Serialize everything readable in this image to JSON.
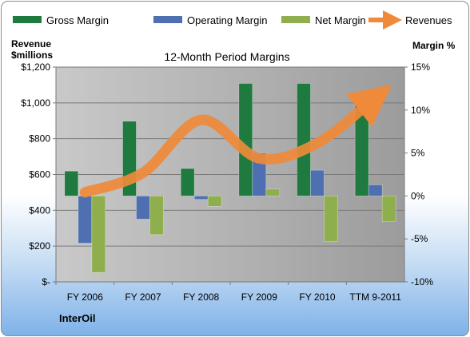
{
  "chart_data": {
    "type": "bar",
    "title": "12-Month Period Margins",
    "company": "InterOil",
    "categories": [
      "FY 2006",
      "FY 2007",
      "FY 2008",
      "FY 2009",
      "FY 2010",
      "TTM 9-2011"
    ],
    "left_axis": {
      "label_line1": "Revenue",
      "label_line2": "$millions",
      "range": [
        0,
        1200
      ],
      "ticks": [
        0,
        200,
        400,
        600,
        800,
        1000,
        1200
      ],
      "tick_labels": [
        "$-",
        "$200",
        "$400",
        "$600",
        "$800",
        "$1,000",
        "$1,200"
      ]
    },
    "right_axis": {
      "label": "Margin %",
      "range": [
        -10,
        15
      ],
      "ticks": [
        -10,
        -5,
        0,
        5,
        10,
        15
      ],
      "tick_labels": [
        "-10%",
        "-5%",
        "0%",
        "5%",
        "10%",
        "15%"
      ]
    },
    "series": [
      {
        "name": "Gross Margin",
        "axis": "right",
        "kind": "bar",
        "color": "#1e7a3e",
        "values": [
          2.9,
          8.7,
          3.2,
          13.1,
          13.1,
          11.2
        ]
      },
      {
        "name": "Operating Margin",
        "axis": "right",
        "kind": "bar",
        "color": "#4e6fb0",
        "values": [
          -5.5,
          -2.7,
          -0.4,
          5.0,
          3.0,
          1.3
        ]
      },
      {
        "name": "Net Margin",
        "axis": "right",
        "kind": "bar",
        "color": "#8fae4e",
        "values": [
          -8.9,
          -4.5,
          -1.2,
          0.8,
          -5.3,
          -3.0
        ]
      },
      {
        "name": "Revenues",
        "axis": "left",
        "kind": "line",
        "color": "#ef8a3a",
        "values": [
          500,
          610,
          905,
          690,
          775,
          1030
        ]
      }
    ],
    "grid": true,
    "legend_position": "top"
  }
}
